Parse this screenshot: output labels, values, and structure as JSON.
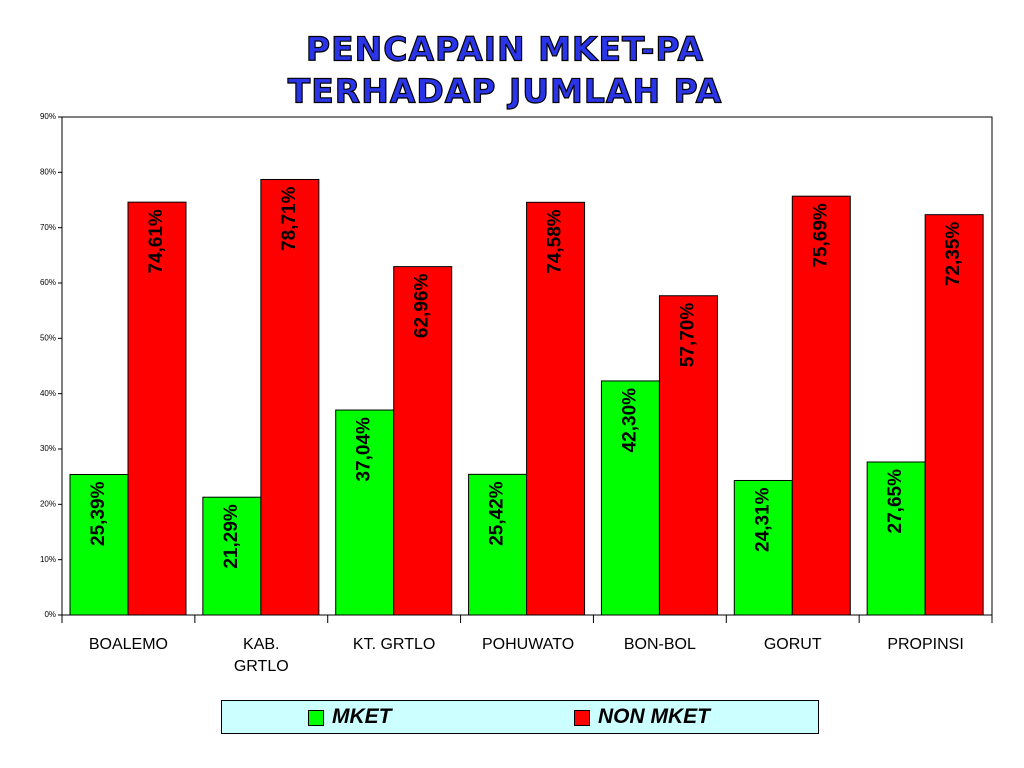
{
  "chart_data": {
    "type": "bar",
    "title": [
      "PENCAPAIN MKET-PA",
      "TERHADAP JUMLAH PA"
    ],
    "categories": [
      "BOALEMO",
      "KAB. GRTLO",
      "KT. GRTLO",
      "POHUWATO",
      "BON-BOL",
      "GORUT",
      "PROPINSI"
    ],
    "series": [
      {
        "name": "MKET",
        "color": "#00ff00",
        "values": [
          25.39,
          21.29,
          37.04,
          25.42,
          42.3,
          24.31,
          27.65
        ],
        "value_labels": [
          "25,39%",
          "21,29%",
          "37,04%",
          "25,42%",
          "42,30%",
          "24,31%",
          "27,65%"
        ]
      },
      {
        "name": "NON MKET",
        "color": "#ff0000",
        "values": [
          74.61,
          78.71,
          62.96,
          74.58,
          57.7,
          75.69,
          72.35
        ],
        "value_labels": [
          "74,61%",
          "78,71%",
          "62,96%",
          "74,58%",
          "57,70%",
          "75,69%",
          "72,35%"
        ]
      }
    ],
    "ylim": [
      0,
      90
    ],
    "yticks": [
      {
        "value": 0,
        "label": "0%"
      },
      {
        "value": 10,
        "label": "10%"
      },
      {
        "value": 20,
        "label": "20%"
      },
      {
        "value": 30,
        "label": "30%"
      },
      {
        "value": 40,
        "label": "40%"
      },
      {
        "value": 50,
        "label": "50%"
      },
      {
        "value": 60,
        "label": "60%"
      },
      {
        "value": 70,
        "label": "70%"
      },
      {
        "value": 80,
        "label": "80%"
      },
      {
        "value": 90,
        "label": "90%"
      }
    ],
    "grid": false,
    "legend": "bottom"
  }
}
